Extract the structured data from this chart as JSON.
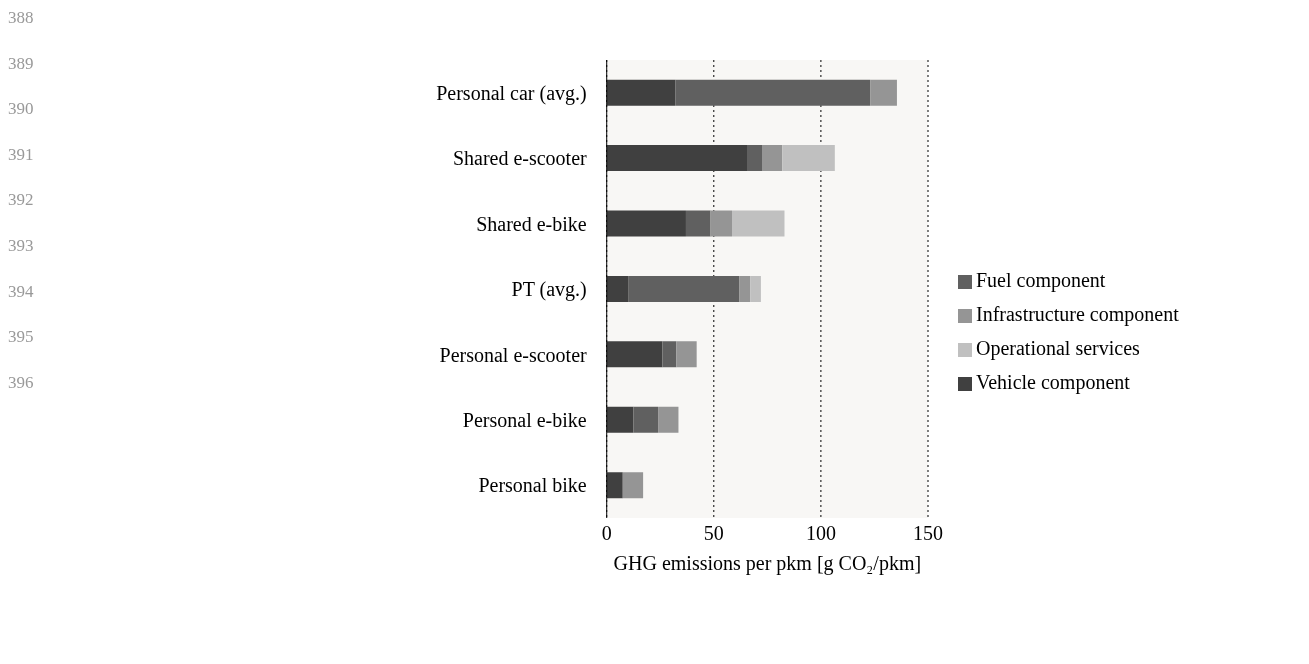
{
  "chart_data": {
    "type": "bar",
    "orientation": "horizontal",
    "stacked": true,
    "categories": [
      "Personal car (avg.)",
      "Shared e-scooter",
      "Shared e-bike",
      "PT (avg.)",
      "Personal e-scooter",
      "Personal e-bike",
      "Personal bike"
    ],
    "series": [
      {
        "name": "Vehicle component",
        "color": "#404040",
        "values": [
          32,
          65.5,
          37,
          10,
          26,
          12.5,
          7.5
        ]
      },
      {
        "name": "Fuel component",
        "color": "#606060",
        "values": [
          91,
          7,
          11.5,
          52,
          6.5,
          11.5,
          0
        ]
      },
      {
        "name": "Infrastructure component",
        "color": "#959595",
        "values": [
          12.5,
          9.5,
          10,
          5,
          9.5,
          9.5,
          9.5
        ]
      },
      {
        "name": "Operational services",
        "color": "#c0c0c0",
        "values": [
          0,
          24.5,
          24.5,
          5,
          0,
          0,
          0
        ]
      }
    ],
    "xlabel": "GHG emissions per pkm [g CO₂/pkm]",
    "xlim": [
      0,
      150
    ],
    "xticks": [
      0,
      50,
      100,
      150
    ],
    "grid": "x",
    "line_style": "dotted",
    "legend": "right",
    "annotations": [
      "388",
      "389",
      "390",
      "391",
      "392",
      "393",
      "394",
      "395",
      "396"
    ]
  }
}
